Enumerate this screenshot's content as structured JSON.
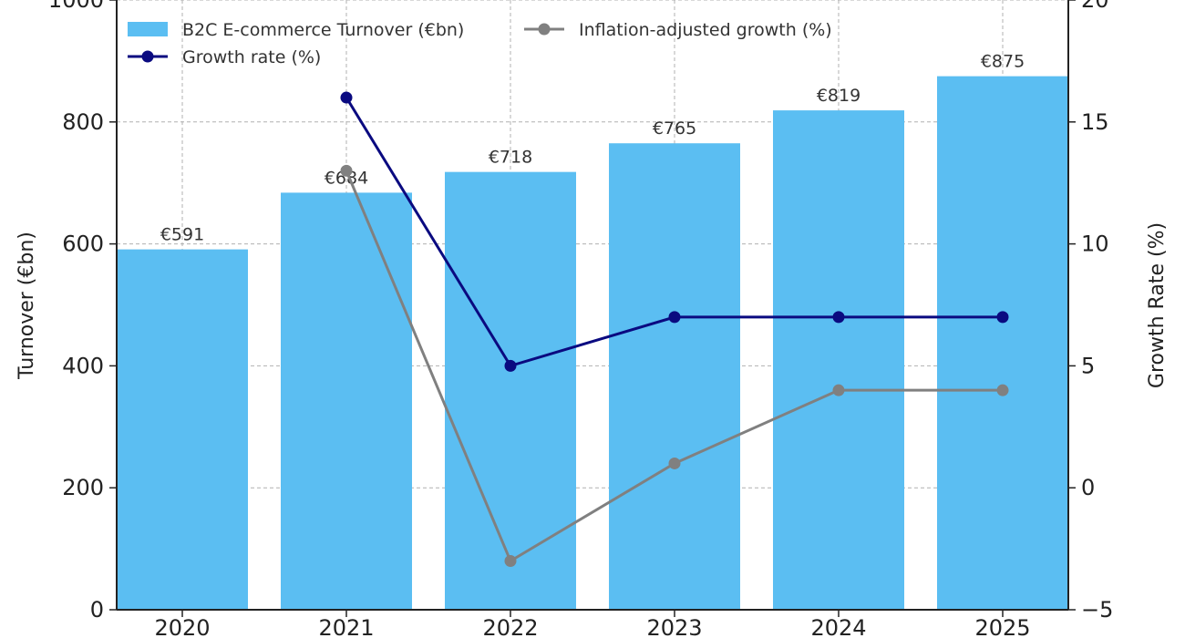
{
  "chart_data": {
    "type": "bar",
    "categories": [
      "2020",
      "2021",
      "2022",
      "2023",
      "2024",
      "2025"
    ],
    "bars": {
      "name": "B2C E-commerce Turnover (€bn)",
      "values": [
        591,
        684,
        718,
        765,
        819,
        875
      ],
      "labels": [
        "€591",
        "€684",
        "€718",
        "€765",
        "€819",
        "€875"
      ],
      "color": "#5bbef2"
    },
    "lines": [
      {
        "name": "Growth rate (%)",
        "x": [
          "2021",
          "2022",
          "2023",
          "2024",
          "2025"
        ],
        "values": [
          16,
          5,
          7,
          7,
          7
        ],
        "color": "#0a0a80"
      },
      {
        "name": "Inflation-adjusted growth (%)",
        "x": [
          "2021",
          "2022",
          "2023",
          "2024",
          "2025"
        ],
        "values": [
          13,
          -3,
          1,
          4,
          4
        ],
        "color": "#808080"
      }
    ],
    "ylabel": "Turnover (€bn)",
    "y2label": "Growth Rate (%)",
    "ylim": [
      0,
      1000
    ],
    "y2lim": [
      -5,
      20
    ],
    "yticks": [
      0,
      200,
      400,
      600,
      800,
      1000
    ],
    "y2ticks": [
      -5,
      0,
      5,
      10,
      15,
      20
    ],
    "grid": true,
    "legend_position": "top-left"
  }
}
